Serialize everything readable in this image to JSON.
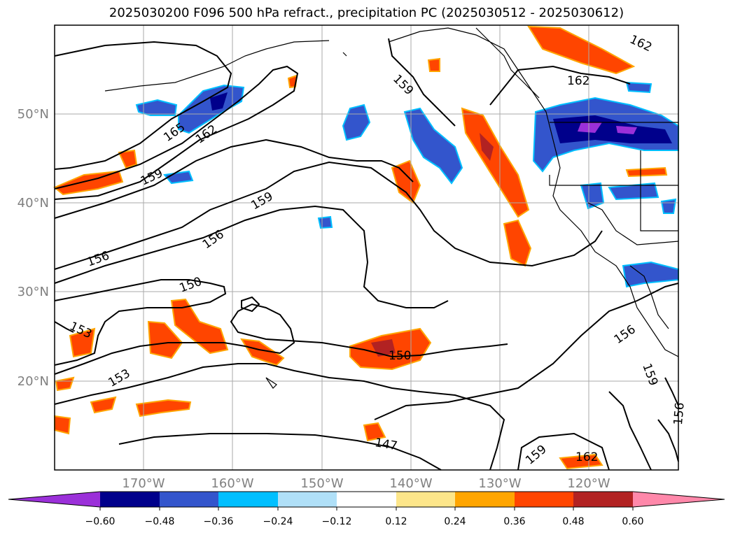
{
  "title": "2025030200 F096 500 hPa refract., precipitation PC (2025030512 - 2025030612)",
  "map": {
    "lat_labels": [
      "50°N",
      "40°N",
      "30°N",
      "20°N"
    ],
    "lon_labels": [
      "170°W",
      "160°W",
      "150°W",
      "140°W",
      "130°W",
      "120°W"
    ],
    "gridlines": true,
    "contour_labels": [
      "165",
      "162",
      "159",
      "156",
      "153",
      "150",
      "147"
    ]
  },
  "colorbar": {
    "ticks": [
      "−0.60",
      "−0.48",
      "−0.36",
      "−0.24",
      "−0.12",
      "0.12",
      "0.24",
      "0.36",
      "0.48",
      "0.60"
    ],
    "colors": [
      "#9b30d9",
      "#00008b",
      "#3355cc",
      "#00bfff",
      "#b0e0f8",
      "#ffffff",
      "#fde68a",
      "#ffa500",
      "#ff4500",
      "#b22222",
      "#ff88aa"
    ]
  }
}
